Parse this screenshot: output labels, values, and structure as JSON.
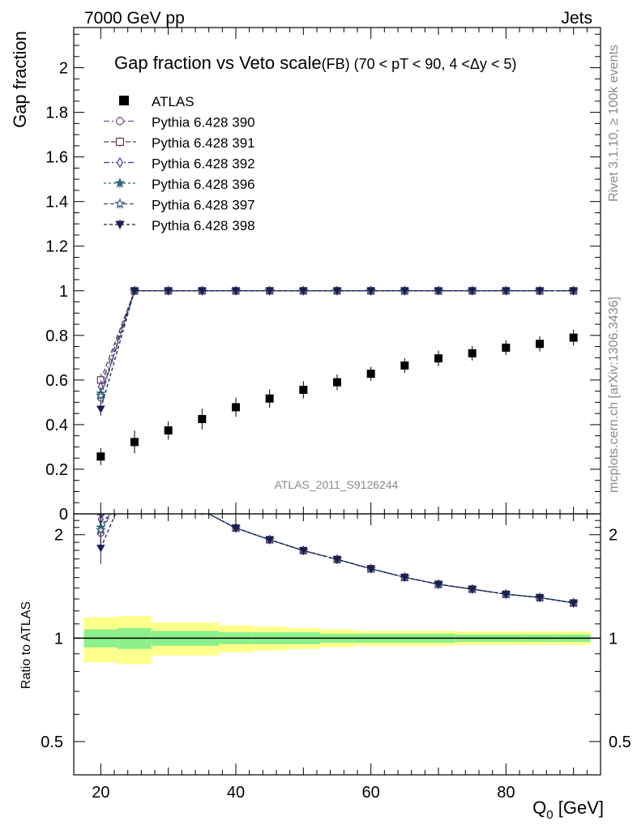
{
  "header": {
    "left": "7000 GeV pp",
    "right": "Jets"
  },
  "side_labels": {
    "rivet": "Rivet 3.1.10, ≥ 100k events",
    "mcplots": "mcplots.cern.ch [arXiv:1306.3436]"
  },
  "chart_data": {
    "type": "scatter",
    "title": "Gap fraction vs Veto scale",
    "title_suffix": "(FB) (70 < pT <  90, 4 <Δy < 5)",
    "watermark": "ATLAS_2011_S9126244",
    "xlabel": "Q",
    "xlabel_sub": "0",
    "xlabel_unit": " [GeV]",
    "ylabel": "Gap fraction",
    "ratio_ylabel": "Ratio to ATLAS",
    "xlim": [
      16,
      94
    ],
    "ylim": [
      0,
      2.18
    ],
    "ratio_ylim": [
      0.4,
      2.3
    ],
    "ratio_scale": "log",
    "x_ticks": [
      20,
      40,
      60,
      80
    ],
    "y_ticks": [
      0,
      0.2,
      0.4,
      0.6,
      0.8,
      1,
      1.2,
      1.4,
      1.6,
      1.8,
      2
    ],
    "y_tick_labels": [
      "0",
      "0.2",
      "0.4",
      "0.6",
      "0.8",
      "1",
      "1.2",
      "1.4",
      "1.6",
      "1.8",
      "2"
    ],
    "ratio_ticks": [
      0.5,
      1,
      2
    ],
    "ratio_tick_labels": [
      "0.5",
      "1",
      "2"
    ],
    "x": [
      20,
      25,
      30,
      35,
      40,
      45,
      50,
      55,
      60,
      65,
      70,
      75,
      80,
      85,
      90
    ],
    "data": {
      "name": "ATLAS",
      "values": [
        0.257,
        0.322,
        0.374,
        0.425,
        0.478,
        0.517,
        0.556,
        0.59,
        0.628,
        0.665,
        0.697,
        0.72,
        0.745,
        0.762,
        0.79
      ],
      "band_edges": [
        17.5,
        22.5,
        27.5,
        32.5,
        37.5,
        42.5,
        47.5,
        52.5,
        57.5,
        62.5,
        67.5,
        72.5,
        77.5,
        82.5,
        87.5,
        92.5
      ],
      "stat_err": [
        0.06,
        0.07,
        0.05,
        0.05,
        0.04,
        0.04,
        0.04,
        0.03,
        0.03,
        0.03,
        0.03,
        0.025,
        0.025,
        0.025,
        0.025
      ],
      "total_err": [
        0.15,
        0.16,
        0.11,
        0.11,
        0.09,
        0.08,
        0.07,
        0.06,
        0.05,
        0.05,
        0.05,
        0.045,
        0.045,
        0.045,
        0.045
      ]
    },
    "mc": [
      {
        "name": "Pythia 6.428 390",
        "color": "#7a4a8c",
        "marker": "circle-open",
        "dash": "7,3,2,3",
        "first": 0.52
      },
      {
        "name": "Pythia 6.428 391",
        "color": "#6a3a52",
        "marker": "square-open",
        "dash": "6,3",
        "first": 0.6
      },
      {
        "name": "Pythia 6.428 392",
        "color": "#4b2d8c",
        "marker": "diamond-open",
        "dash": "7,3,2,3",
        "first": 0.57
      },
      {
        "name": "Pythia 6.428 396",
        "color": "#2f6a78",
        "marker": "star",
        "dash": "3,3",
        "first": 0.54
      },
      {
        "name": "Pythia 6.428 397",
        "color": "#2d4f7a",
        "marker": "star-open",
        "dash": "5,3",
        "first": 0.53
      },
      {
        "name": "Pythia 6.428 398",
        "color": "#1a1f4f",
        "marker": "triangle-down",
        "dash": "4,3",
        "first": 0.47
      }
    ],
    "mc_values_after_first": [
      1,
      1,
      1,
      1,
      1,
      1,
      1,
      1,
      1,
      1,
      1,
      1,
      1,
      1
    ]
  }
}
